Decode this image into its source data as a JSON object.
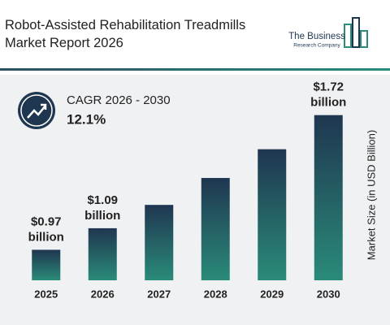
{
  "chart_data": {
    "type": "bar",
    "title": "Robot-Assisted Rehabilitation Treadmills Market Report 2026",
    "categories": [
      "2025",
      "2026",
      "2027",
      "2028",
      "2029",
      "2030"
    ],
    "values": [
      0.97,
      1.09,
      1.22,
      1.37,
      1.53,
      1.72
    ],
    "value_labels": [
      "$0.97 billion",
      "$1.09 billion",
      null,
      null,
      null,
      "$1.72 billion"
    ],
    "color": "#1f3650",
    "color_bottom": "#2a8b79",
    "ylim": [
      0.8,
      1.8
    ],
    "y_axis_label": "Market Size (in USD Billion)",
    "annotation": {
      "label": "CAGR 2026 - 2030",
      "value": "12.1%"
    }
  },
  "brand": {
    "line1": "The Business",
    "line2": "Research Company"
  }
}
